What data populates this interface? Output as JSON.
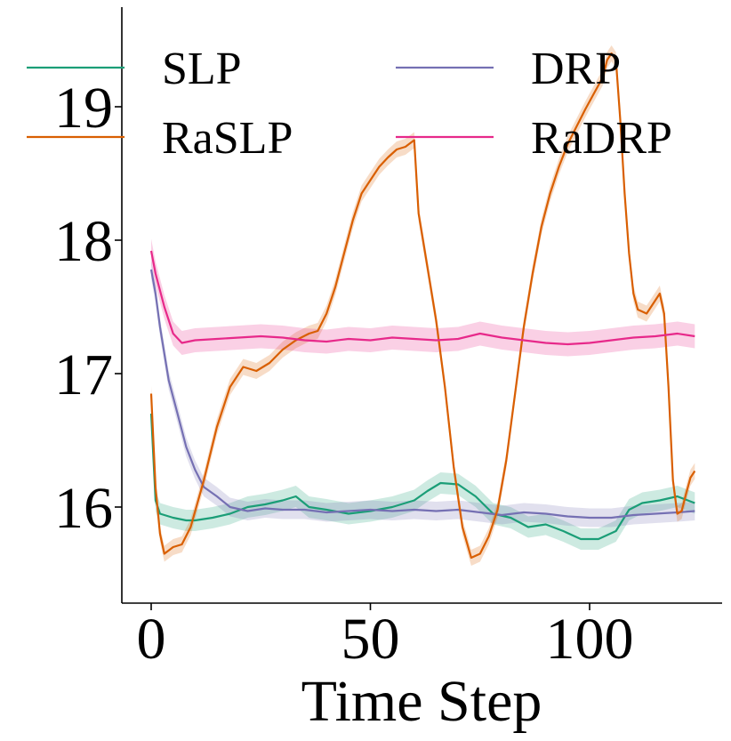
{
  "chart_data": {
    "type": "line",
    "title": "",
    "xlabel": "Time Step",
    "ylabel": "",
    "xlim": [
      -5.5,
      130
    ],
    "ylim": [
      15.3,
      19.75
    ],
    "xticks": [
      0,
      50,
      100
    ],
    "xtick_labels": [
      "0",
      "50",
      "100"
    ],
    "yticks": [
      16,
      17,
      18,
      19
    ],
    "ytick_labels": [
      "16",
      "17",
      "18",
      "19"
    ],
    "legend": {
      "placement": "top",
      "columns": 2
    },
    "series": [
      {
        "name": "SLP",
        "color": "#1b9e77",
        "band": 0.08,
        "points": [
          [
            0,
            16.7
          ],
          [
            1,
            16.05
          ],
          [
            2,
            15.95
          ],
          [
            5,
            15.92
          ],
          [
            8,
            15.9
          ],
          [
            10,
            15.9
          ],
          [
            14,
            15.92
          ],
          [
            18,
            15.95
          ],
          [
            22,
            16.0
          ],
          [
            26,
            16.02
          ],
          [
            30,
            16.05
          ],
          [
            33,
            16.08
          ],
          [
            36,
            16.0
          ],
          [
            40,
            15.98
          ],
          [
            45,
            15.95
          ],
          [
            50,
            15.97
          ],
          [
            55,
            16.0
          ],
          [
            60,
            16.05
          ],
          [
            63,
            16.12
          ],
          [
            66,
            16.18
          ],
          [
            70,
            16.17
          ],
          [
            74,
            16.08
          ],
          [
            78,
            15.95
          ],
          [
            82,
            15.92
          ],
          [
            86,
            15.85
          ],
          [
            90,
            15.87
          ],
          [
            94,
            15.82
          ],
          [
            98,
            15.76
          ],
          [
            102,
            15.76
          ],
          [
            106,
            15.82
          ],
          [
            109,
            15.98
          ],
          [
            112,
            16.03
          ],
          [
            116,
            16.05
          ],
          [
            120,
            16.08
          ],
          [
            124,
            16.03
          ]
        ]
      },
      {
        "name": "DRP",
        "color": "#7570b3",
        "band": 0.07,
        "points": [
          [
            0,
            17.78
          ],
          [
            1,
            17.6
          ],
          [
            2,
            17.35
          ],
          [
            3,
            17.15
          ],
          [
            4,
            16.95
          ],
          [
            6,
            16.7
          ],
          [
            8,
            16.45
          ],
          [
            10,
            16.28
          ],
          [
            12,
            16.15
          ],
          [
            15,
            16.08
          ],
          [
            18,
            16.0
          ],
          [
            22,
            15.97
          ],
          [
            26,
            15.99
          ],
          [
            30,
            15.98
          ],
          [
            35,
            15.98
          ],
          [
            40,
            15.96
          ],
          [
            45,
            15.97
          ],
          [
            50,
            15.98
          ],
          [
            55,
            15.97
          ],
          [
            60,
            15.98
          ],
          [
            65,
            15.97
          ],
          [
            70,
            15.98
          ],
          [
            75,
            15.96
          ],
          [
            80,
            15.94
          ],
          [
            85,
            15.96
          ],
          [
            90,
            15.95
          ],
          [
            95,
            15.93
          ],
          [
            100,
            15.92
          ],
          [
            105,
            15.92
          ],
          [
            110,
            15.94
          ],
          [
            115,
            15.95
          ],
          [
            120,
            15.96
          ],
          [
            124,
            15.97
          ]
        ]
      },
      {
        "name": "RaSLP",
        "color": "#d95f02",
        "band": 0.06,
        "points": [
          [
            0,
            16.85
          ],
          [
            1,
            16.15
          ],
          [
            2,
            15.8
          ],
          [
            3,
            15.65
          ],
          [
            5,
            15.7
          ],
          [
            7,
            15.72
          ],
          [
            9,
            15.85
          ],
          [
            12,
            16.2
          ],
          [
            15,
            16.6
          ],
          [
            18,
            16.9
          ],
          [
            21,
            17.05
          ],
          [
            24,
            17.02
          ],
          [
            27,
            17.08
          ],
          [
            30,
            17.18
          ],
          [
            33,
            17.25
          ],
          [
            36,
            17.3
          ],
          [
            38,
            17.32
          ],
          [
            40,
            17.45
          ],
          [
            42,
            17.65
          ],
          [
            44,
            17.9
          ],
          [
            46,
            18.15
          ],
          [
            48,
            18.35
          ],
          [
            50,
            18.45
          ],
          [
            52,
            18.55
          ],
          [
            54,
            18.62
          ],
          [
            56,
            18.68
          ],
          [
            58,
            18.7
          ],
          [
            60,
            18.75
          ],
          [
            61,
            18.2
          ],
          [
            63,
            17.8
          ],
          [
            65,
            17.4
          ],
          [
            67,
            16.9
          ],
          [
            69,
            16.3
          ],
          [
            71,
            15.85
          ],
          [
            73,
            15.62
          ],
          [
            75,
            15.65
          ],
          [
            77,
            15.78
          ],
          [
            79,
            15.98
          ],
          [
            81,
            16.35
          ],
          [
            83,
            16.85
          ],
          [
            85,
            17.35
          ],
          [
            87,
            17.75
          ],
          [
            89,
            18.1
          ],
          [
            91,
            18.35
          ],
          [
            93,
            18.55
          ],
          [
            95,
            18.72
          ],
          [
            97,
            18.85
          ],
          [
            99,
            18.98
          ],
          [
            101,
            19.1
          ],
          [
            103,
            19.22
          ],
          [
            104,
            19.35
          ],
          [
            105,
            19.4
          ],
          [
            106,
            19.35
          ],
          [
            107,
            18.9
          ],
          [
            108,
            18.35
          ],
          [
            109,
            17.9
          ],
          [
            110,
            17.6
          ],
          [
            111,
            17.48
          ],
          [
            113,
            17.45
          ],
          [
            115,
            17.55
          ],
          [
            116,
            17.6
          ],
          [
            117,
            17.45
          ],
          [
            118,
            16.9
          ],
          [
            119,
            16.2
          ],
          [
            120,
            15.95
          ],
          [
            121,
            15.97
          ],
          [
            122,
            16.1
          ],
          [
            123,
            16.22
          ],
          [
            124,
            16.27
          ]
        ]
      },
      {
        "name": "RaDRP",
        "color": "#e7298a",
        "band": 0.09,
        "points": [
          [
            0,
            17.92
          ],
          [
            1,
            17.75
          ],
          [
            3,
            17.5
          ],
          [
            5,
            17.3
          ],
          [
            7,
            17.23
          ],
          [
            10,
            17.25
          ],
          [
            15,
            17.26
          ],
          [
            20,
            17.27
          ],
          [
            25,
            17.28
          ],
          [
            30,
            17.27
          ],
          [
            35,
            17.25
          ],
          [
            40,
            17.24
          ],
          [
            45,
            17.26
          ],
          [
            50,
            17.25
          ],
          [
            55,
            17.27
          ],
          [
            60,
            17.26
          ],
          [
            65,
            17.25
          ],
          [
            70,
            17.26
          ],
          [
            75,
            17.3
          ],
          [
            80,
            17.27
          ],
          [
            85,
            17.25
          ],
          [
            90,
            17.23
          ],
          [
            95,
            17.22
          ],
          [
            100,
            17.23
          ],
          [
            105,
            17.25
          ],
          [
            110,
            17.27
          ],
          [
            115,
            17.28
          ],
          [
            120,
            17.3
          ],
          [
            124,
            17.28
          ]
        ]
      }
    ]
  }
}
